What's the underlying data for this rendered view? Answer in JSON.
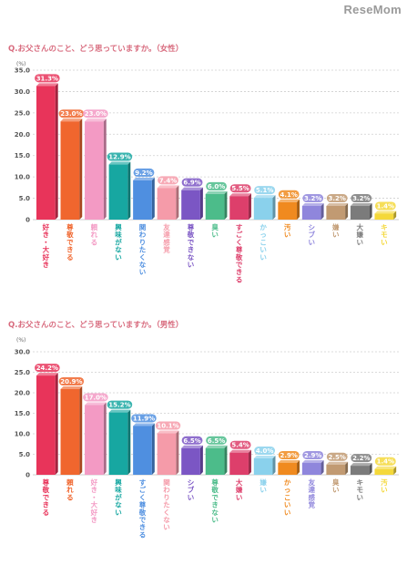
{
  "brand": {
    "logo_text": "ReseMom"
  },
  "chart_data": [
    {
      "type": "bar",
      "title": "Q.お父さんのこと、どう思っていますか。（女性）",
      "ylabel": "(%)",
      "ylim": [
        0,
        35
      ],
      "yticks": [
        "0",
        "5.0",
        "10.0",
        "15.0",
        "20.0",
        "25.0",
        "30.0",
        "35.0"
      ],
      "categories": [
        "好き・大好き",
        "尊敬できる",
        "頼れる",
        "興味がない",
        "関わりたくない",
        "友達感覚",
        "尊敬できない",
        "臭い",
        "すごく尊敬できる",
        "かっこいい",
        "汚い",
        "シブい",
        "嫌い",
        "大嫌い",
        "キモい"
      ],
      "values": [
        31.3,
        23.0,
        23.0,
        12.9,
        9.2,
        7.4,
        6.9,
        6.0,
        5.5,
        5.1,
        4.1,
        3.2,
        3.2,
        3.2,
        1.4
      ],
      "value_labels": [
        "31.3%",
        "23.0%",
        "23.0%",
        "12.9%",
        "9.2%",
        "7.4%",
        "6.9%",
        "6.0%",
        "5.5%",
        "5.1%",
        "4.1%",
        "3.2%",
        "3.2%",
        "3.2%",
        "1.4%"
      ],
      "colors": [
        "#e8345a",
        "#f0662e",
        "#f39ac4",
        "#17a7a1",
        "#4f8fe0",
        "#f59ba9",
        "#7b56c4",
        "#4cbc8a",
        "#dd3f6b",
        "#8ad1ec",
        "#f08a1f",
        "#8f86dc",
        "#c19a72",
        "#7b7b7b",
        "#f4d83a"
      ],
      "grid": true,
      "legend": "none"
    },
    {
      "type": "bar",
      "title": "Q.お父さんのこと、どう思っていますか。（男性）",
      "ylabel": "(%)",
      "ylim": [
        0,
        30
      ],
      "yticks": [
        "0",
        "5.0",
        "10.0",
        "15.0",
        "20.0",
        "25.0",
        "30.0"
      ],
      "categories": [
        "尊敬できる",
        "頼れる",
        "好き・大好き",
        "興味がない",
        "すごく尊敬できる",
        "関わりたくない",
        "シブい",
        "尊敬できない",
        "大嫌い",
        "嫌い",
        "かっこいい",
        "友達感覚",
        "臭い",
        "キモい",
        "汚い"
      ],
      "values": [
        24.2,
        20.9,
        17.0,
        15.2,
        11.9,
        10.1,
        6.5,
        6.5,
        5.4,
        4.0,
        2.9,
        2.9,
        2.5,
        2.2,
        1.4
      ],
      "value_labels": [
        "24.2%",
        "20.9%",
        "17.0%",
        "15.2%",
        "11.9%",
        "10.1%",
        "6.5%",
        "6.5%",
        "5.4%",
        "4.0%",
        "2.9%",
        "2.9%",
        "2.5%",
        "2.2%",
        "1.4%"
      ],
      "colors": [
        "#e8345a",
        "#f0662e",
        "#f39ac4",
        "#17a7a1",
        "#4f8fe0",
        "#f59ba9",
        "#7b56c4",
        "#4cbc8a",
        "#dd3f6b",
        "#8ad1ec",
        "#f08a1f",
        "#8f86dc",
        "#c19a72",
        "#7b7b7b",
        "#f4d83a"
      ],
      "grid": true,
      "legend": "none"
    }
  ]
}
